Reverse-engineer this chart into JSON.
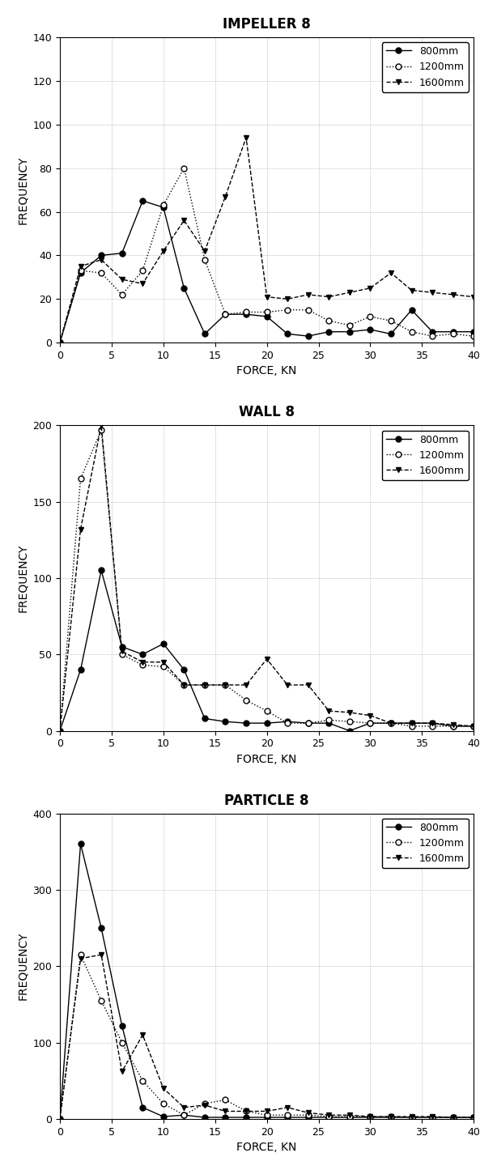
{
  "impeller8": {
    "title": "IMPELLER 8",
    "xlabel": "FORCE, KN",
    "ylabel": "FREQUENCY",
    "ylim": [
      0,
      140
    ],
    "yticks": [
      0,
      20,
      40,
      60,
      80,
      100,
      120,
      140
    ],
    "xlim": [
      0,
      40
    ],
    "xticks": [
      0,
      5,
      10,
      15,
      20,
      25,
      30,
      35,
      40
    ],
    "series": {
      "800mm": {
        "x": [
          0,
          2,
          4,
          6,
          8,
          10,
          12,
          14,
          16,
          18,
          20,
          22,
          24,
          26,
          28,
          30,
          32,
          34,
          36,
          38,
          40
        ],
        "y": [
          0,
          32,
          40,
          41,
          65,
          62,
          25,
          4,
          13,
          13,
          12,
          4,
          3,
          5,
          5,
          6,
          4,
          15,
          5,
          5,
          5
        ]
      },
      "1200mm": {
        "x": [
          0,
          2,
          4,
          6,
          8,
          10,
          12,
          14,
          16,
          18,
          20,
          22,
          24,
          26,
          28,
          30,
          32,
          34,
          36,
          38,
          40
        ],
        "y": [
          0,
          33,
          32,
          22,
          33,
          63,
          80,
          38,
          13,
          14,
          14,
          15,
          15,
          10,
          8,
          12,
          10,
          5,
          3,
          4,
          3
        ]
      },
      "1600mm": {
        "x": [
          0,
          2,
          4,
          6,
          8,
          10,
          12,
          14,
          16,
          18,
          20,
          22,
          24,
          26,
          28,
          30,
          32,
          34,
          36,
          38,
          40
        ],
        "y": [
          0,
          35,
          38,
          29,
          27,
          42,
          56,
          42,
          67,
          94,
          21,
          20,
          22,
          21,
          23,
          25,
          32,
          24,
          23,
          22,
          21
        ]
      }
    }
  },
  "wall8": {
    "title": "WALL 8",
    "xlabel": "FORCE, KN",
    "ylabel": "FREQUENCY",
    "ylim": [
      0,
      200
    ],
    "yticks": [
      0,
      50,
      100,
      150,
      200
    ],
    "xlim": [
      0,
      40
    ],
    "xticks": [
      0,
      5,
      10,
      15,
      20,
      25,
      30,
      35,
      40
    ],
    "series": {
      "800mm": {
        "x": [
          0,
          2,
          4,
          6,
          8,
          10,
          12,
          14,
          16,
          18,
          20,
          22,
          24,
          26,
          28,
          30,
          32,
          34,
          36,
          38,
          40
        ],
        "y": [
          0,
          40,
          105,
          55,
          50,
          57,
          40,
          8,
          6,
          5,
          5,
          6,
          5,
          5,
          0,
          5,
          5,
          5,
          5,
          3,
          3
        ]
      },
      "1200mm": {
        "x": [
          0,
          2,
          4,
          6,
          8,
          10,
          12,
          14,
          16,
          18,
          20,
          22,
          24,
          26,
          28,
          30,
          32,
          34,
          36,
          38,
          40
        ],
        "y": [
          0,
          165,
          197,
          50,
          43,
          42,
          30,
          30,
          30,
          20,
          13,
          5,
          5,
          7,
          6,
          5,
          5,
          3,
          3,
          3,
          3
        ]
      },
      "1600mm": {
        "x": [
          0,
          2,
          4,
          6,
          8,
          10,
          12,
          14,
          16,
          18,
          20,
          22,
          24,
          26,
          28,
          30,
          32,
          34,
          36,
          38,
          40
        ],
        "y": [
          0,
          132,
          200,
          52,
          45,
          45,
          30,
          30,
          30,
          30,
          47,
          30,
          30,
          13,
          12,
          10,
          5,
          5,
          5,
          4,
          3
        ]
      }
    }
  },
  "particle8": {
    "title": "PARTICLE 8",
    "xlabel": "FORCE, KN",
    "ylabel": "FREQUENCY",
    "ylim": [
      0,
      400
    ],
    "yticks": [
      0,
      100,
      200,
      300,
      400
    ],
    "xlim": [
      0,
      40
    ],
    "xticks": [
      0,
      5,
      10,
      15,
      20,
      25,
      30,
      35,
      40
    ],
    "series": {
      "800mm": {
        "x": [
          0,
          2,
          4,
          6,
          8,
          10,
          12,
          14,
          16,
          18,
          20,
          22,
          24,
          26,
          28,
          30,
          32,
          34,
          36,
          38,
          40
        ],
        "y": [
          0,
          360,
          250,
          122,
          15,
          3,
          5,
          2,
          2,
          2,
          2,
          2,
          2,
          2,
          2,
          2,
          2,
          2,
          2,
          2,
          2
        ]
      },
      "1200mm": {
        "x": [
          0,
          2,
          4,
          6,
          8,
          10,
          12,
          14,
          16,
          18,
          20,
          22,
          24,
          26,
          28,
          30,
          32,
          34,
          36,
          38,
          40
        ],
        "y": [
          0,
          215,
          155,
          100,
          50,
          20,
          5,
          20,
          25,
          10,
          5,
          5,
          5,
          3,
          3,
          3,
          3,
          2,
          2,
          2,
          2
        ]
      },
      "1600mm": {
        "x": [
          0,
          2,
          4,
          6,
          8,
          10,
          12,
          14,
          16,
          18,
          20,
          22,
          24,
          26,
          28,
          30,
          32,
          34,
          36,
          38,
          40
        ],
        "y": [
          0,
          210,
          215,
          62,
          110,
          40,
          15,
          18,
          10,
          10,
          10,
          15,
          8,
          5,
          5,
          3,
          3,
          3,
          3,
          2,
          2
        ]
      }
    }
  },
  "legend_labels": [
    "800mm",
    "1200mm",
    "1600mm"
  ],
  "bg_color": "#ffffff",
  "line_color": "#000000"
}
